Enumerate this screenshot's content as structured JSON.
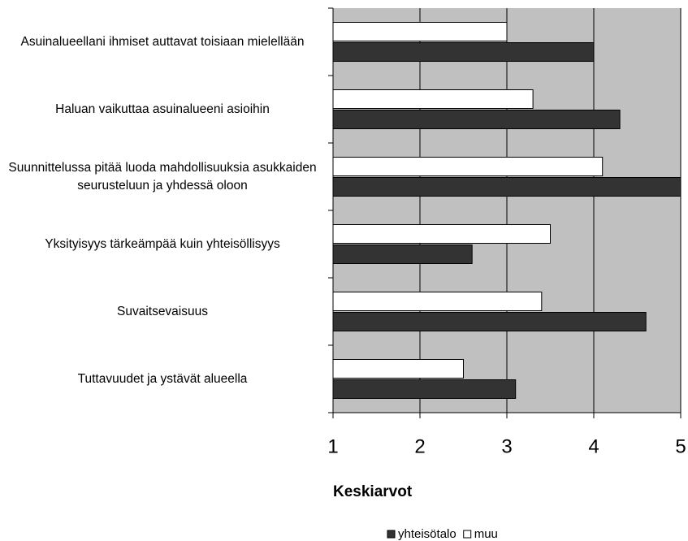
{
  "chart_data": {
    "type": "barh",
    "categories": [
      "Asuinalueellani ihmiset auttavat toisiaan mielellään",
      "Haluan vaikuttaa asuinalueeni asioihin",
      "Suunnittelussa pitää luoda mahdollisuuksia asukkaiden seurusteluun ja yhdessä oloon",
      "Yksityisyys tärkeämpää kuin yhteisöllisyys",
      "Suvaitsevaisuus",
      "Tuttavuudet ja ystävät alueella"
    ],
    "series": [
      {
        "name": "yhteisötalo",
        "color": "#333333",
        "values": [
          4.0,
          4.3,
          5.0,
          2.6,
          4.6,
          3.1
        ]
      },
      {
        "name": "muu",
        "color": "#ffffff",
        "values": [
          3.0,
          3.3,
          4.1,
          3.5,
          3.4,
          2.5
        ]
      }
    ],
    "xlabel": "Keskiarvot",
    "xlim": [
      1,
      5
    ],
    "xticks": [
      1,
      2,
      3,
      4,
      5
    ],
    "grid": true,
    "plot_background": "#c0c0c0",
    "legend": "bottom"
  }
}
